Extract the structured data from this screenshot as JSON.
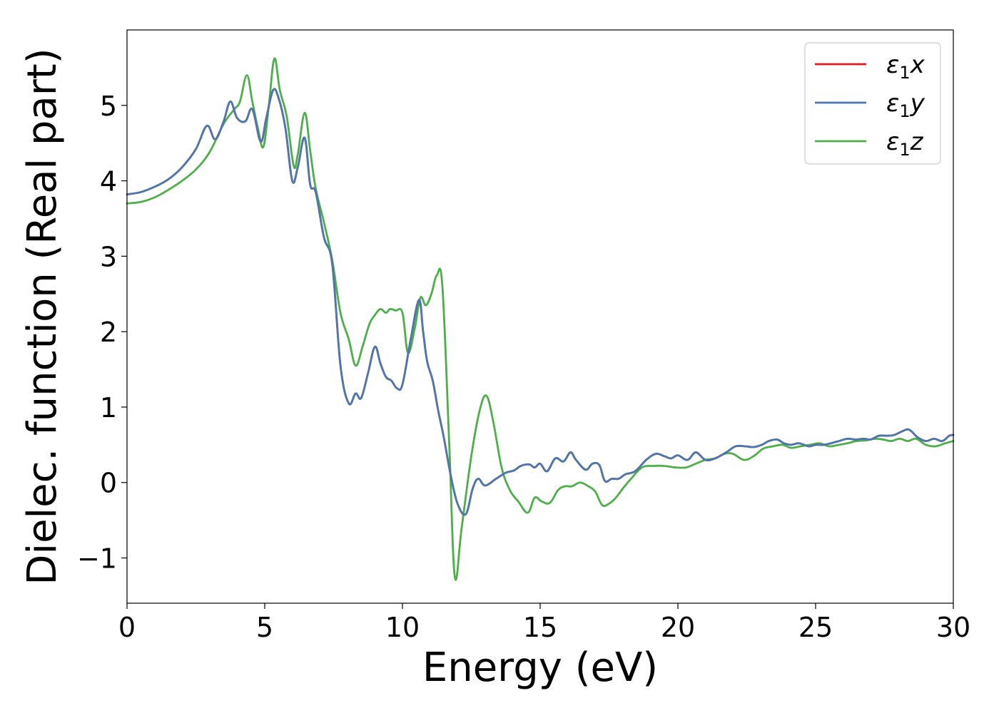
{
  "chart_data": {
    "type": "line",
    "xlabel": "Energy (eV)",
    "ylabel": "Dielec. function (Real part)",
    "xlim": [
      0,
      30
    ],
    "ylim": [
      -1.6,
      6.0
    ],
    "xticks": [
      0,
      5,
      10,
      15,
      20,
      25,
      30
    ],
    "xtick_labels": [
      "0",
      "5",
      "10",
      "15",
      "20",
      "25",
      "30"
    ],
    "yticks": [
      -1,
      0,
      1,
      2,
      3,
      4,
      5
    ],
    "ytick_labels": [
      "−1",
      "0",
      "1",
      "2",
      "3",
      "4",
      "5"
    ],
    "grid": false,
    "legend_position": "top-right",
    "colors": {
      "x": "#e41a1c",
      "y": "#4a78b0",
      "z": "#4daf4a"
    },
    "series": [
      {
        "name": "ε1x",
        "legend_symbol": "ε",
        "legend_sub": "1",
        "legend_var": "x",
        "color": "#e41a1c",
        "x": [
          0,
          0.5,
          1,
          1.5,
          2,
          2.5,
          2.9,
          3.2,
          3.5,
          3.75,
          4.0,
          4.3,
          4.55,
          4.85,
          5.05,
          5.3,
          5.5,
          5.75,
          6.0,
          6.2,
          6.45,
          6.65,
          6.85,
          7.15,
          7.45,
          7.75,
          8.05,
          8.3,
          8.5,
          8.75,
          9.0,
          9.2,
          9.4,
          9.6,
          9.8,
          10.0,
          10.3,
          10.6,
          10.75,
          10.9,
          11.1,
          11.3,
          11.5,
          11.75,
          12.0,
          12.3,
          12.55,
          12.75,
          13.0,
          13.4,
          13.75,
          14.05,
          14.3,
          14.6,
          14.8,
          15.0,
          15.25,
          15.55,
          15.85,
          16.1,
          16.3,
          16.65,
          16.9,
          17.15,
          17.35,
          17.6,
          17.85,
          18.1,
          18.45,
          18.85,
          19.2,
          19.5,
          19.75,
          20.0,
          20.35,
          20.65,
          21.0,
          21.35,
          21.75,
          22.1,
          22.45,
          22.75,
          23.05,
          23.3,
          23.6,
          23.85,
          24.1,
          24.4,
          24.75,
          25.0,
          25.3,
          25.55,
          25.85,
          26.15,
          26.45,
          26.75,
          27.0,
          27.3,
          27.6,
          27.85,
          28.15,
          28.4,
          28.7,
          29.0,
          29.3,
          29.6,
          29.85,
          30
        ],
        "y": [
          3.82,
          3.85,
          3.92,
          4.02,
          4.18,
          4.42,
          4.73,
          4.55,
          4.78,
          5.05,
          4.83,
          4.79,
          4.95,
          4.52,
          4.82,
          5.2,
          5.1,
          4.7,
          4.0,
          4.18,
          4.57,
          3.95,
          3.85,
          3.25,
          2.9,
          1.55,
          1.05,
          1.18,
          1.12,
          1.45,
          1.8,
          1.58,
          1.4,
          1.35,
          1.25,
          1.3,
          1.9,
          2.42,
          2.0,
          1.6,
          1.35,
          0.95,
          0.6,
          0.1,
          -0.28,
          -0.42,
          -0.08,
          0.05,
          -0.04,
          0.05,
          0.13,
          0.16,
          0.22,
          0.24,
          0.2,
          0.25,
          0.15,
          0.32,
          0.28,
          0.4,
          0.3,
          0.17,
          0.25,
          0.23,
          0.02,
          0.05,
          0.05,
          0.11,
          0.15,
          0.3,
          0.38,
          0.35,
          0.32,
          0.36,
          0.3,
          0.4,
          0.3,
          0.32,
          0.4,
          0.48,
          0.48,
          0.47,
          0.5,
          0.55,
          0.57,
          0.52,
          0.5,
          0.52,
          0.48,
          0.5,
          0.5,
          0.52,
          0.55,
          0.58,
          0.57,
          0.58,
          0.57,
          0.62,
          0.62,
          0.63,
          0.68,
          0.7,
          0.6,
          0.55,
          0.58,
          0.55,
          0.62,
          0.63
        ]
      },
      {
        "name": "ε1y",
        "legend_symbol": "ε",
        "legend_sub": "1",
        "legend_var": "y",
        "color": "#4a78b0",
        "x": [
          0,
          0.5,
          1,
          1.5,
          2,
          2.5,
          2.9,
          3.2,
          3.5,
          3.75,
          4.0,
          4.3,
          4.55,
          4.85,
          5.05,
          5.3,
          5.5,
          5.75,
          6.0,
          6.2,
          6.45,
          6.65,
          6.85,
          7.15,
          7.45,
          7.75,
          8.05,
          8.3,
          8.5,
          8.75,
          9.0,
          9.2,
          9.4,
          9.6,
          9.8,
          10.0,
          10.3,
          10.6,
          10.75,
          10.9,
          11.1,
          11.3,
          11.5,
          11.75,
          12.0,
          12.3,
          12.55,
          12.75,
          13.0,
          13.4,
          13.75,
          14.05,
          14.3,
          14.6,
          14.8,
          15.0,
          15.25,
          15.55,
          15.85,
          16.1,
          16.3,
          16.65,
          16.9,
          17.15,
          17.35,
          17.6,
          17.85,
          18.1,
          18.45,
          18.85,
          19.2,
          19.5,
          19.75,
          20.0,
          20.35,
          20.65,
          21.0,
          21.35,
          21.75,
          22.1,
          22.45,
          22.75,
          23.05,
          23.3,
          23.6,
          23.85,
          24.1,
          24.4,
          24.75,
          25.0,
          25.3,
          25.55,
          25.85,
          26.15,
          26.45,
          26.75,
          27.0,
          27.3,
          27.6,
          27.85,
          28.15,
          28.4,
          28.7,
          29.0,
          29.3,
          29.6,
          29.85,
          30
        ],
        "y": [
          3.82,
          3.85,
          3.92,
          4.02,
          4.18,
          4.42,
          4.73,
          4.55,
          4.78,
          5.05,
          4.83,
          4.79,
          4.95,
          4.52,
          4.82,
          5.2,
          5.1,
          4.7,
          4.0,
          4.18,
          4.57,
          3.95,
          3.85,
          3.25,
          2.9,
          1.55,
          1.05,
          1.18,
          1.12,
          1.45,
          1.8,
          1.58,
          1.4,
          1.35,
          1.25,
          1.3,
          1.9,
          2.42,
          2.0,
          1.6,
          1.35,
          0.95,
          0.6,
          0.1,
          -0.28,
          -0.42,
          -0.08,
          0.05,
          -0.04,
          0.05,
          0.13,
          0.16,
          0.22,
          0.24,
          0.2,
          0.25,
          0.15,
          0.32,
          0.28,
          0.4,
          0.3,
          0.17,
          0.25,
          0.23,
          0.02,
          0.05,
          0.05,
          0.11,
          0.15,
          0.3,
          0.38,
          0.35,
          0.32,
          0.36,
          0.3,
          0.4,
          0.3,
          0.32,
          0.4,
          0.48,
          0.48,
          0.47,
          0.5,
          0.55,
          0.57,
          0.52,
          0.5,
          0.52,
          0.48,
          0.5,
          0.5,
          0.52,
          0.55,
          0.58,
          0.57,
          0.58,
          0.57,
          0.62,
          0.62,
          0.63,
          0.68,
          0.7,
          0.6,
          0.55,
          0.58,
          0.55,
          0.62,
          0.63
        ]
      },
      {
        "name": "ε1z",
        "legend_symbol": "ε",
        "legend_sub": "1",
        "legend_var": "z",
        "color": "#4daf4a",
        "x": [
          0,
          0.5,
          1,
          1.5,
          2,
          2.5,
          3.0,
          3.5,
          3.9,
          4.1,
          4.35,
          4.55,
          4.75,
          4.95,
          5.15,
          5.35,
          5.55,
          5.8,
          6.05,
          6.2,
          6.45,
          6.65,
          6.85,
          7.15,
          7.45,
          7.75,
          8.05,
          8.3,
          8.55,
          8.8,
          9.0,
          9.2,
          9.4,
          9.55,
          9.75,
          10.0,
          10.2,
          10.45,
          10.65,
          10.85,
          11.05,
          11.25,
          11.45,
          11.7,
          11.9,
          12.15,
          12.5,
          12.8,
          13.05,
          13.3,
          13.6,
          13.9,
          14.2,
          14.55,
          14.8,
          15.05,
          15.35,
          15.65,
          15.9,
          16.15,
          16.45,
          16.75,
          17.0,
          17.25,
          17.5,
          17.75,
          18.0,
          18.3,
          18.7,
          19.1,
          19.5,
          19.9,
          20.3,
          20.65,
          21.0,
          21.35,
          21.7,
          22.0,
          22.4,
          22.75,
          23.1,
          23.45,
          23.8,
          24.1,
          24.45,
          24.8,
          25.15,
          25.5,
          25.85,
          26.15,
          26.5,
          26.85,
          27.15,
          27.45,
          27.75,
          28.05,
          28.35,
          28.65,
          29.0,
          29.35,
          29.7,
          30
        ],
        "y": [
          3.7,
          3.72,
          3.78,
          3.88,
          4.0,
          4.15,
          4.38,
          4.75,
          4.95,
          5.05,
          5.4,
          5.05,
          4.7,
          4.45,
          5.0,
          5.62,
          5.2,
          4.85,
          4.2,
          4.35,
          4.9,
          4.4,
          3.9,
          3.45,
          2.95,
          2.25,
          1.9,
          1.55,
          1.8,
          2.1,
          2.22,
          2.3,
          2.25,
          2.3,
          2.28,
          2.25,
          1.72,
          2.05,
          2.45,
          2.35,
          2.5,
          2.75,
          2.6,
          0.5,
          -1.25,
          -0.6,
          0.35,
          0.95,
          1.15,
          0.8,
          0.2,
          -0.1,
          -0.25,
          -0.4,
          -0.2,
          -0.25,
          -0.27,
          -0.1,
          -0.05,
          -0.05,
          0.0,
          -0.05,
          -0.12,
          -0.3,
          -0.28,
          -0.2,
          -0.08,
          0.05,
          0.2,
          0.22,
          0.22,
          0.2,
          0.2,
          0.25,
          0.3,
          0.32,
          0.38,
          0.38,
          0.3,
          0.35,
          0.45,
          0.48,
          0.5,
          0.46,
          0.48,
          0.5,
          0.52,
          0.48,
          0.5,
          0.52,
          0.55,
          0.56,
          0.58,
          0.57,
          0.55,
          0.58,
          0.55,
          0.58,
          0.5,
          0.48,
          0.52,
          0.55
        ]
      }
    ]
  }
}
